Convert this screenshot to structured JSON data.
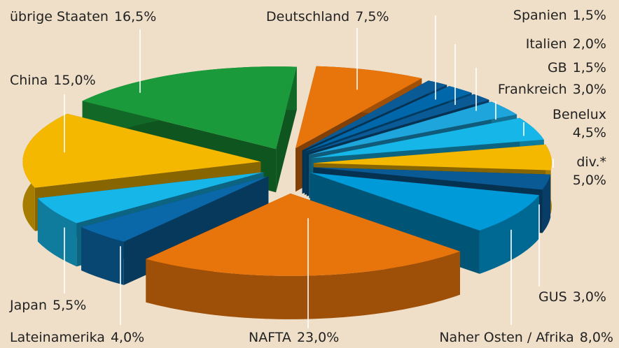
{
  "chart_data": {
    "type": "pie",
    "categories": [
      "Deutschland",
      "Spanien",
      "Italien",
      "GB",
      "Frankreich",
      "Benelux",
      "div.*",
      "GUS",
      "Naher Osten / Afrika",
      "NAFTA",
      "Lateinamerika",
      "Japan",
      "China",
      "übrige Staaten"
    ],
    "values": [
      7.5,
      1.5,
      2.0,
      1.5,
      3.0,
      4.5,
      5.0,
      3.0,
      8.0,
      23.0,
      4.0,
      5.5,
      15.0,
      16.5
    ],
    "value_labels": [
      "7,5%",
      "1,5%",
      "2,0%",
      "1,5%",
      "3,0%",
      "4,5%",
      "5,0%",
      "3,0%",
      "8,0%",
      "23,0%",
      "4,0%",
      "5,5%",
      "15,0%",
      "16,5%"
    ],
    "colors": [
      "#e8740c",
      "#0a5a96",
      "#0068aa",
      "#0a5a96",
      "#1ea6dc",
      "#16b6e8",
      "#f5b800",
      "#0a5a96",
      "#009ad8",
      "#e8740c",
      "#0a68a8",
      "#16b6e8",
      "#f5b800",
      "#1a9a3a"
    ]
  }
}
